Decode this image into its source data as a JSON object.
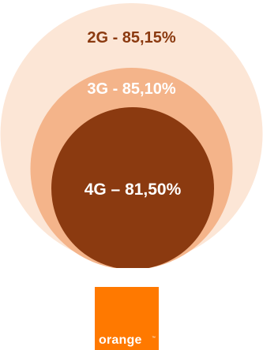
{
  "chart_data": {
    "type": "nested-circles",
    "series": [
      {
        "label": "2G - 85,15%",
        "value": 85.15,
        "fill": "#fce6d6",
        "text_color": "#8b3a10"
      },
      {
        "label": "3G - 85,10%",
        "value": 85.1,
        "fill": "#f4b48a",
        "text_color": "#ffffff"
      },
      {
        "label": "4G – 81,50%",
        "value": 81.5,
        "fill": "#8b3a10",
        "text_color": "#ffffff"
      }
    ]
  },
  "logo": {
    "text": "orange",
    "tm": "™",
    "color": "#ff7900"
  }
}
